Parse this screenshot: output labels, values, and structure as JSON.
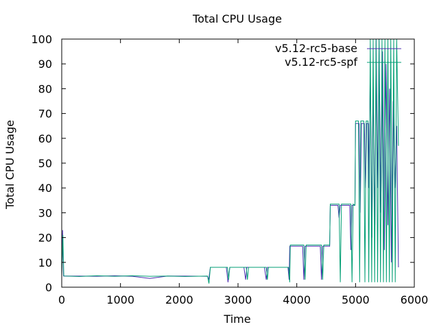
{
  "chart_data": {
    "type": "line",
    "title": "Total CPU Usage",
    "xlabel": "Time",
    "ylabel": "Total CPU Usage",
    "xlim": [
      0,
      6000
    ],
    "ylim": [
      0,
      100
    ],
    "xticks": [
      0,
      1000,
      2000,
      3000,
      4000,
      5000,
      6000
    ],
    "yticks": [
      0,
      10,
      20,
      30,
      40,
      50,
      60,
      70,
      80,
      90,
      100
    ],
    "grid": false,
    "legend_position": "top-right",
    "series": [
      {
        "name": "v5.12-rc5-base",
        "color": "#4b2db0",
        "points": [
          [
            0,
            4.5
          ],
          [
            15,
            23
          ],
          [
            30,
            4.5
          ],
          [
            300,
            4.5
          ],
          [
            600,
            4.4
          ],
          [
            900,
            4.6
          ],
          [
            1200,
            4.4
          ],
          [
            1500,
            3.5
          ],
          [
            1800,
            4.5
          ],
          [
            2100,
            4.5
          ],
          [
            2480,
            4.4
          ],
          [
            2500,
            3
          ],
          [
            2530,
            8
          ],
          [
            2800,
            8
          ],
          [
            2830,
            2
          ],
          [
            2860,
            8
          ],
          [
            3100,
            8
          ],
          [
            3130,
            3
          ],
          [
            3150,
            8
          ],
          [
            3450,
            8
          ],
          [
            3480,
            3
          ],
          [
            3500,
            8
          ],
          [
            3850,
            8
          ],
          [
            3870,
            3
          ],
          [
            3880,
            16.5
          ],
          [
            4100,
            16.5
          ],
          [
            4120,
            3
          ],
          [
            4140,
            16.5
          ],
          [
            4400,
            16.5
          ],
          [
            4420,
            3
          ],
          [
            4440,
            16.5
          ],
          [
            4560,
            16.5
          ],
          [
            4570,
            33
          ],
          [
            4700,
            33
          ],
          [
            4720,
            28
          ],
          [
            4740,
            33
          ],
          [
            4900,
            33
          ],
          [
            4920,
            15
          ],
          [
            4940,
            33
          ],
          [
            4990,
            33
          ],
          [
            5000,
            66
          ],
          [
            5060,
            66
          ],
          [
            5080,
            30
          ],
          [
            5100,
            66
          ],
          [
            5150,
            66
          ],
          [
            5170,
            40
          ],
          [
            5190,
            66
          ],
          [
            5220,
            66
          ],
          [
            5230,
            40
          ],
          [
            5250,
            90
          ],
          [
            5280,
            20
          ],
          [
            5300,
            82
          ],
          [
            5330,
            25
          ],
          [
            5350,
            100
          ],
          [
            5380,
            40
          ],
          [
            5400,
            100
          ],
          [
            5430,
            30
          ],
          [
            5460,
            95
          ],
          [
            5490,
            15
          ],
          [
            5520,
            90
          ],
          [
            5550,
            25
          ],
          [
            5580,
            80
          ],
          [
            5610,
            10
          ],
          [
            5640,
            75
          ],
          [
            5670,
            40
          ],
          [
            5700,
            65
          ],
          [
            5730,
            8
          ]
        ]
      },
      {
        "name": "v5.12-rc5-spf",
        "color": "#009e73",
        "points": [
          [
            0,
            4.5
          ],
          [
            20,
            21
          ],
          [
            35,
            4.5
          ],
          [
            300,
            4.3
          ],
          [
            600,
            4.6
          ],
          [
            900,
            4.4
          ],
          [
            1200,
            4.6
          ],
          [
            1500,
            4.4
          ],
          [
            1800,
            4.5
          ],
          [
            2100,
            4.3
          ],
          [
            2480,
            4.5
          ],
          [
            2505,
            1.5
          ],
          [
            2530,
            8
          ],
          [
            2820,
            8
          ],
          [
            2840,
            3
          ],
          [
            2860,
            8
          ],
          [
            3140,
            8
          ],
          [
            3160,
            3
          ],
          [
            3180,
            8
          ],
          [
            3480,
            8
          ],
          [
            3500,
            3
          ],
          [
            3520,
            8
          ],
          [
            3860,
            8
          ],
          [
            3880,
            2
          ],
          [
            3890,
            17
          ],
          [
            4120,
            17
          ],
          [
            4140,
            3
          ],
          [
            4160,
            17
          ],
          [
            4420,
            17
          ],
          [
            4440,
            3
          ],
          [
            4460,
            17
          ],
          [
            4560,
            17
          ],
          [
            4570,
            33.5
          ],
          [
            4720,
            33.5
          ],
          [
            4740,
            2
          ],
          [
            4760,
            33.5
          ],
          [
            4920,
            33.5
          ],
          [
            4940,
            2
          ],
          [
            4960,
            33.5
          ],
          [
            4990,
            33
          ],
          [
            5000,
            67
          ],
          [
            5050,
            67
          ],
          [
            5070,
            2
          ],
          [
            5090,
            67
          ],
          [
            5140,
            67
          ],
          [
            5160,
            2
          ],
          [
            5180,
            67
          ],
          [
            5210,
            67
          ],
          [
            5225,
            2
          ],
          [
            5250,
            100
          ],
          [
            5275,
            2
          ],
          [
            5300,
            100
          ],
          [
            5325,
            2
          ],
          [
            5350,
            100
          ],
          [
            5375,
            2
          ],
          [
            5400,
            100
          ],
          [
            5425,
            2
          ],
          [
            5450,
            100
          ],
          [
            5475,
            2
          ],
          [
            5500,
            100
          ],
          [
            5525,
            2
          ],
          [
            5550,
            100
          ],
          [
            5575,
            2
          ],
          [
            5600,
            100
          ],
          [
            5625,
            2
          ],
          [
            5650,
            100
          ],
          [
            5675,
            2
          ],
          [
            5700,
            100
          ],
          [
            5730,
            57
          ]
        ]
      }
    ]
  }
}
